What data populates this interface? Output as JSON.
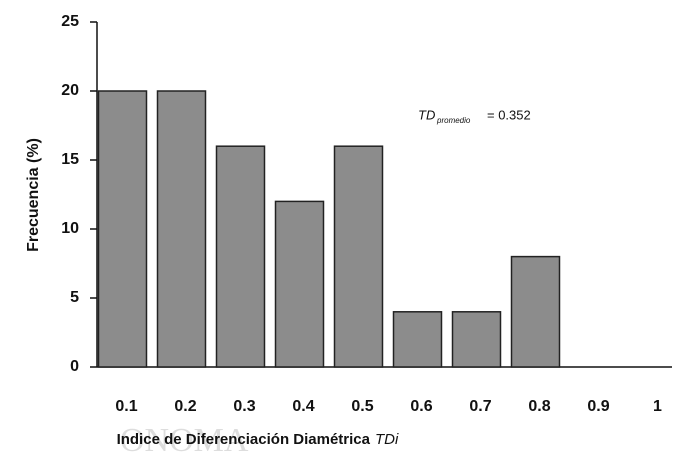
{
  "chart_data": {
    "type": "bar",
    "ylabel": "Frecuencia (%)",
    "xlabel": "Indice de Diferenciación Diamétrica",
    "xlabel_symbol": "TDi",
    "annotation": {
      "symbol": "TD",
      "subscript": "promedio",
      "text": "= 0.352"
    },
    "categories": [
      "0.1",
      "0.2",
      "0.3",
      "0.4",
      "0.5",
      "0.6",
      "0.7",
      "0.8",
      "0.9",
      "1"
    ],
    "values": [
      20,
      20,
      16,
      12,
      16,
      4,
      4,
      8,
      0,
      0
    ],
    "color": "#8c8c8c",
    "ylim": [
      0,
      25
    ],
    "yticks": [
      0,
      5,
      10,
      15,
      20,
      25
    ],
    "grid": false
  },
  "watermark": "ONOMA"
}
